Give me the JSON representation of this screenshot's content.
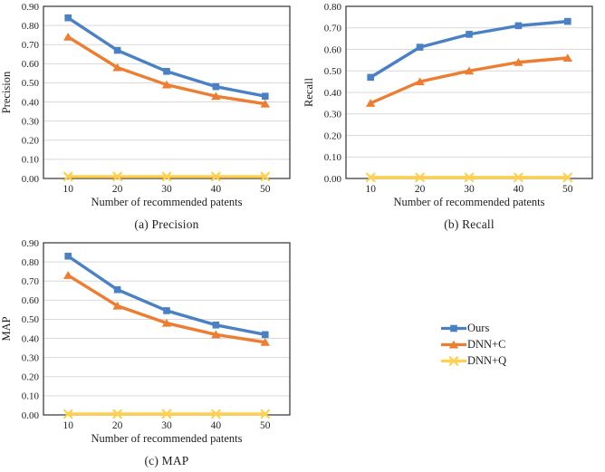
{
  "figure": {
    "captions": {
      "a": "(a) Precision",
      "b": "(b) Recall",
      "c": "(c) MAP"
    },
    "legend": {
      "position": "middle-right",
      "items": [
        {
          "label": "Ours",
          "marker": "square",
          "color": "#4A80C4"
        },
        {
          "label": "DNN+C",
          "marker": "triangle",
          "color": "#ED7D31"
        },
        {
          "label": "DNN+Q",
          "marker": "x",
          "color": "#FFD04D"
        }
      ]
    },
    "colors": {
      "grid": "#D9D9D9",
      "axis": "#404040",
      "text": "#1F1F1F",
      "background": "#FFFFFF"
    }
  },
  "chart_data": [
    {
      "id": "precision",
      "type": "line",
      "title": "(a) Precision",
      "xlabel": "Number of recommended patents",
      "ylabel": "Precision",
      "x": [
        10,
        20,
        30,
        40,
        50
      ],
      "ylim": [
        0,
        0.9
      ],
      "ytick_step": 0.1,
      "grid": true,
      "series": [
        {
          "name": "Ours",
          "marker": "square",
          "color": "#4A80C4",
          "values": [
            0.84,
            0.67,
            0.56,
            0.48,
            0.43
          ]
        },
        {
          "name": "DNN+C",
          "marker": "triangle",
          "color": "#ED7D31",
          "values": [
            0.74,
            0.58,
            0.49,
            0.43,
            0.39
          ]
        },
        {
          "name": "DNN+Q",
          "marker": "x",
          "color": "#FFD04D",
          "values": [
            0.01,
            0.01,
            0.01,
            0.01,
            0.01
          ]
        }
      ]
    },
    {
      "id": "recall",
      "type": "line",
      "title": "(b) Recall",
      "xlabel": "Number of recommended patents",
      "ylabel": "Recall",
      "x": [
        10,
        20,
        30,
        40,
        50
      ],
      "ylim": [
        0,
        0.8
      ],
      "ytick_step": 0.1,
      "grid": true,
      "series": [
        {
          "name": "Ours",
          "marker": "square",
          "color": "#4A80C4",
          "values": [
            0.47,
            0.61,
            0.67,
            0.71,
            0.73
          ]
        },
        {
          "name": "DNN+C",
          "marker": "triangle",
          "color": "#ED7D31",
          "values": [
            0.35,
            0.45,
            0.5,
            0.54,
            0.56
          ]
        },
        {
          "name": "DNN+Q",
          "marker": "x",
          "color": "#FFD04D",
          "values": [
            0.005,
            0.005,
            0.005,
            0.005,
            0.005
          ]
        }
      ]
    },
    {
      "id": "map",
      "type": "line",
      "title": "(c) MAP",
      "xlabel": "Number of recommended patents",
      "ylabel": "MAP",
      "x": [
        10,
        20,
        30,
        40,
        50
      ],
      "ylim": [
        0,
        0.9
      ],
      "ytick_step": 0.1,
      "grid": true,
      "series": [
        {
          "name": "Ours",
          "marker": "square",
          "color": "#4A80C4",
          "values": [
            0.83,
            0.655,
            0.545,
            0.47,
            0.42
          ]
        },
        {
          "name": "DNN+C",
          "marker": "triangle",
          "color": "#ED7D31",
          "values": [
            0.73,
            0.57,
            0.48,
            0.42,
            0.38
          ]
        },
        {
          "name": "DNN+Q",
          "marker": "x",
          "color": "#FFD04D",
          "values": [
            0.005,
            0.005,
            0.005,
            0.005,
            0.005
          ]
        }
      ]
    }
  ]
}
